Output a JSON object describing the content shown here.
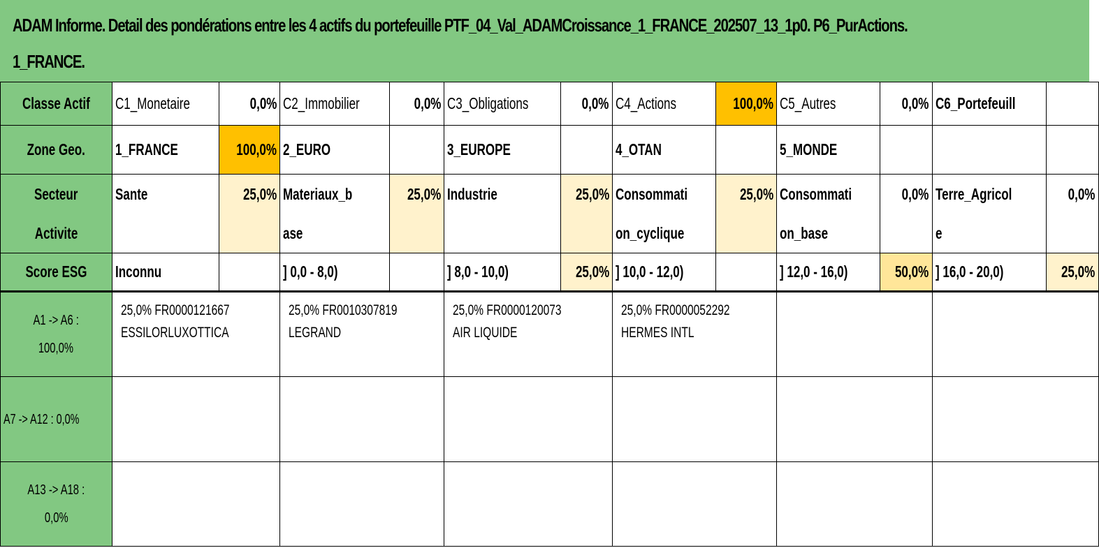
{
  "title": {
    "line1": "ADAM Informe. Detail des pondérations entre les 4 actifs du portefeuille PTF_04_Val_ADAMCroissance_1_FRANCE_202507_13_1p0. P6_PurActions.",
    "line2": "1_FRANCE."
  },
  "rows": {
    "classe": {
      "header": "Classe Actif",
      "cells": [
        {
          "label": "C1_Monetaire",
          "value": "0,0%"
        },
        {
          "label": "C2_Immobilier",
          "value": "0,0%"
        },
        {
          "label": "C3_Obligations",
          "value": "0,0%"
        },
        {
          "label": "C4_Actions",
          "value": "100,0%"
        },
        {
          "label": "C5_Autres",
          "value": "0,0%"
        },
        {
          "label": "C6_Portefeuill",
          "value": ""
        }
      ]
    },
    "zone": {
      "header": "Zone Geo.",
      "cells": [
        {
          "label": "1_FRANCE",
          "value": "100,0%"
        },
        {
          "label": "2_EURO",
          "value": ""
        },
        {
          "label": "3_EUROPE",
          "value": ""
        },
        {
          "label": "4_OTAN",
          "value": ""
        },
        {
          "label": "5_MONDE",
          "value": ""
        },
        {
          "label": "",
          "value": ""
        }
      ]
    },
    "secteur": {
      "header_line1": "Secteur",
      "header_line2": "Activite",
      "cells": [
        {
          "label1": "Sante",
          "label2": "",
          "value": "25,0%"
        },
        {
          "label1": "Materiaux_b",
          "label2": "ase",
          "value": "25,0%"
        },
        {
          "label1": "Industrie",
          "label2": "",
          "value": "25,0%"
        },
        {
          "label1": "Consommati",
          "label2": "on_cyclique",
          "value": "25,0%"
        },
        {
          "label1": "Consommati",
          "label2": "on_base",
          "value": "0,0%"
        },
        {
          "label1": "Terre_Agricol",
          "label2": "e",
          "value": "0,0%"
        }
      ]
    },
    "esg": {
      "header": "Score ESG",
      "cells": [
        {
          "label": "Inconnu",
          "value": ""
        },
        {
          "label": "] 0,0 - 8,0)",
          "value": ""
        },
        {
          "label": "] 8,0 - 10,0)",
          "value": "25,0%"
        },
        {
          "label": "] 10,0 - 12,0)",
          "value": ""
        },
        {
          "label": "] 12,0 - 16,0)",
          "value": "50,0%"
        },
        {
          "label": "] 16,0 - 20,0)",
          "value": "25,0%"
        }
      ]
    }
  },
  "assets": {
    "group1": {
      "label_line1": "A1 -> A6 :",
      "label_line2": "100,0%",
      "items": [
        {
          "line1": "25,0% FR0000121667",
          "line2": "ESSILORLUXOTTICA"
        },
        {
          "line1": "25,0% FR0010307819",
          "line2": "LEGRAND"
        },
        {
          "line1": "25,0% FR0000120073",
          "line2": "AIR LIQUIDE"
        },
        {
          "line1": "25,0% FR0000052292",
          "line2": "HERMES INTL"
        }
      ]
    },
    "group2": {
      "label_line1": "A7 -> A12 : 0,0%"
    },
    "group3": {
      "label_line1": "A13 -> A18 :",
      "label_line2": "0,0%"
    }
  }
}
